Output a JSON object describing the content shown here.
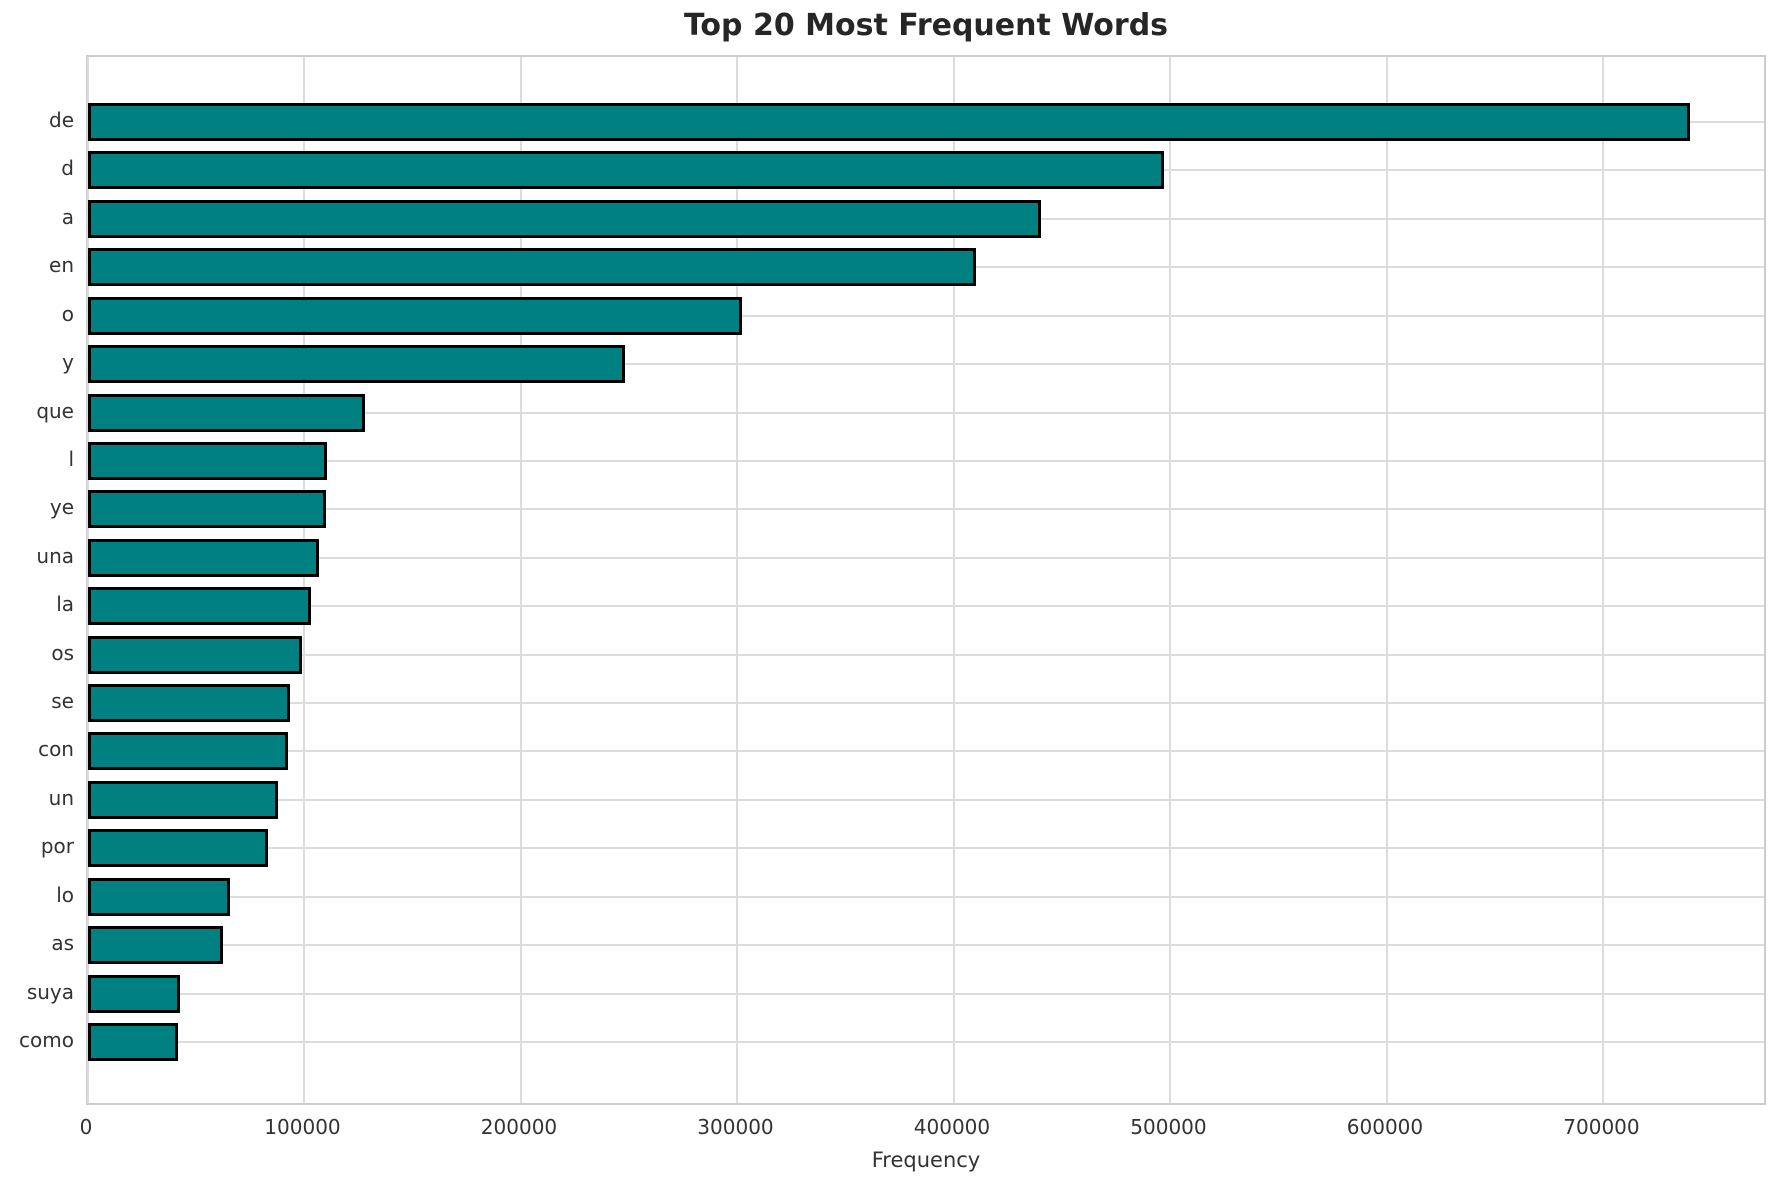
{
  "title": "Top 20 Most Frequent Words",
  "colors": {
    "bar_fill": "#008080",
    "bar_edge": "#000000",
    "grid": "#dcdcdc",
    "spine": "#cccccc",
    "title_text": "#262626",
    "tick_text": "#333333"
  },
  "chart_data": {
    "type": "bar",
    "orientation": "horizontal",
    "title": "Top 20 Most Frequent Words",
    "xlabel": "Frequency",
    "ylabel": "",
    "categories": [
      "de",
      "d",
      "a",
      "en",
      "o",
      "y",
      "que",
      "l",
      "ye",
      "una",
      "la",
      "os",
      "se",
      "con",
      "un",
      "por",
      "lo",
      "as",
      "suya",
      "como"
    ],
    "values": [
      740000,
      497000,
      440000,
      410000,
      302000,
      248000,
      128000,
      110400,
      110000,
      106500,
      103000,
      99000,
      93300,
      92300,
      87700,
      83100,
      65600,
      62300,
      42500,
      41500
    ],
    "x_ticks": [
      0,
      100000,
      200000,
      300000,
      400000,
      500000,
      600000,
      700000
    ],
    "xlim": [
      0,
      776000
    ],
    "grid": true,
    "legend": false
  }
}
